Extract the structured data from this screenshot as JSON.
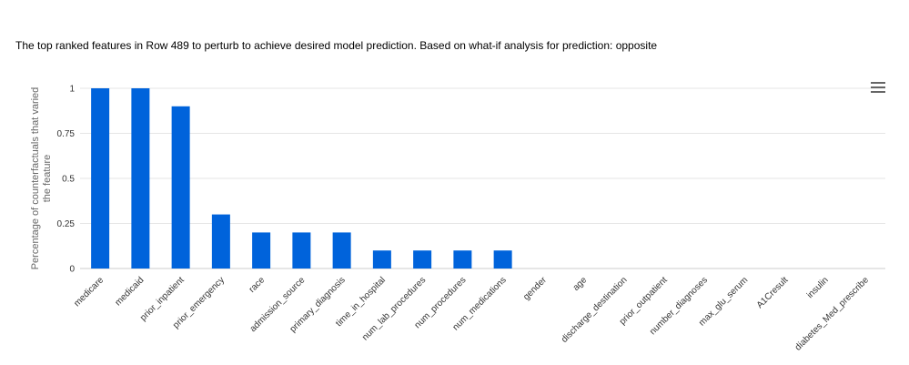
{
  "chart_data": {
    "type": "bar",
    "title": "The top ranked features in Row 489 to perturb to achieve desired model prediction. Based on what-if analysis for prediction: opposite",
    "ylabel_lines": [
      "Percentage of counterfactuals that varied",
      "the feature"
    ],
    "xlabel": "",
    "ylim": [
      0,
      1
    ],
    "y_ticks": [
      0,
      0.25,
      0.5,
      0.75,
      1
    ],
    "y_tick_labels": [
      "0",
      "0.25",
      "0.5",
      "0.75",
      "1"
    ],
    "grid": true,
    "categories": [
      "medicare",
      "medicaid",
      "prior_inpatient",
      "prior_emergency",
      "race",
      "admission_source",
      "primary_diagnosis",
      "time_in_hospital",
      "num_lab_procedures",
      "num_procedures",
      "num_medications",
      "gender",
      "age",
      "discharge_destination",
      "prior_outpatient",
      "number_diagnoses",
      "max_glu_serum",
      "A1Cresult",
      "insulin",
      "diabetes_Med_prescribe"
    ],
    "values": [
      1,
      1,
      0.9,
      0.3,
      0.2,
      0.2,
      0.2,
      0.1,
      0.1,
      0.1,
      0.1,
      0,
      0,
      0,
      0,
      0,
      0,
      0,
      0,
      0
    ],
    "bar_color": "#0063DB"
  },
  "menu": {
    "icon": "hamburger-menu-icon"
  }
}
